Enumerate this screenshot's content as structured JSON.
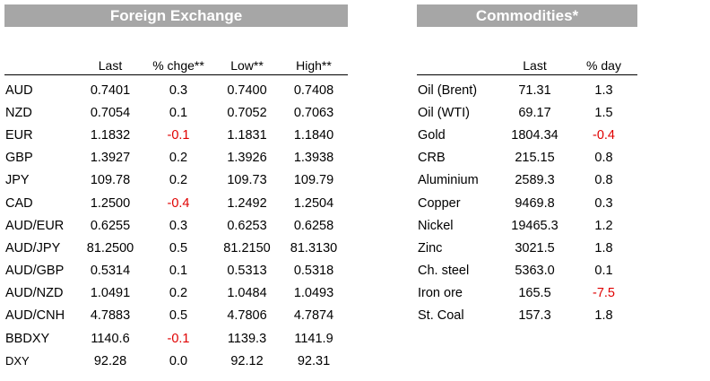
{
  "fx": {
    "title": "Foreign Exchange",
    "headers": [
      "",
      "Last",
      "% chge**",
      "Low**",
      "High**"
    ],
    "rows": [
      {
        "name": "AUD",
        "last": "0.7401",
        "chg": "0.3",
        "low": "0.7400",
        "high": "0.7408"
      },
      {
        "name": "NZD",
        "last": "0.7054",
        "chg": "0.1",
        "low": "0.7052",
        "high": "0.7063"
      },
      {
        "name": "EUR",
        "last": "1.1832",
        "chg": "-0.1",
        "low": "1.1831",
        "high": "1.1840"
      },
      {
        "name": "GBP",
        "last": "1.3927",
        "chg": "0.2",
        "low": "1.3926",
        "high": "1.3938"
      },
      {
        "name": "JPY",
        "last": "109.78",
        "chg": "0.2",
        "low": "109.73",
        "high": "109.79"
      },
      {
        "name": "CAD",
        "last": "1.2500",
        "chg": "-0.4",
        "low": "1.2492",
        "high": "1.2504"
      },
      {
        "name": "AUD/EUR",
        "last": "0.6255",
        "chg": "0.3",
        "low": "0.6253",
        "high": "0.6258"
      },
      {
        "name": "AUD/JPY",
        "last": "81.2500",
        "chg": "0.5",
        "low": "81.2150",
        "high": "81.3130"
      },
      {
        "name": "AUD/GBP",
        "last": "0.5314",
        "chg": "0.1",
        "low": "0.5313",
        "high": "0.5318"
      },
      {
        "name": "AUD/NZD",
        "last": "1.0491",
        "chg": "0.2",
        "low": "1.0484",
        "high": "1.0493"
      },
      {
        "name": "AUD/CNH",
        "last": "4.7883",
        "chg": "0.5",
        "low": "4.7806",
        "high": "4.7874"
      },
      {
        "name": "BBDXY",
        "last": "1140.6",
        "chg": "-0.1",
        "low": "1139.3",
        "high": "1141.9"
      },
      {
        "name": "DXY",
        "last": "92.28",
        "chg": "0.0",
        "low": "92.12",
        "high": "92.31"
      }
    ]
  },
  "commodities": {
    "title": "Commodities*",
    "headers": [
      "",
      "Last",
      "% day"
    ],
    "rows": [
      {
        "name": "Oil (Brent)",
        "last": "71.31",
        "day": "1.3"
      },
      {
        "name": "Oil (WTI)",
        "last": "69.17",
        "day": "1.5"
      },
      {
        "name": "Gold",
        "last": "1804.34",
        "day": "-0.4"
      },
      {
        "name": "CRB",
        "last": "215.15",
        "day": "0.8"
      },
      {
        "name": "Aluminium",
        "last": "2589.3",
        "day": "0.8"
      },
      {
        "name": "Copper",
        "last": "9469.8",
        "day": "0.3"
      },
      {
        "name": "Nickel",
        "last": "19465.3",
        "day": "1.2"
      },
      {
        "name": "Zinc",
        "last": "3021.5",
        "day": "1.8"
      },
      {
        "name": "Ch. steel",
        "last": "5363.0",
        "day": "0.1"
      },
      {
        "name": "Iron ore",
        "last": "165.5",
        "day": "-7.5"
      },
      {
        "name": "St. Coal",
        "last": "157.3",
        "day": "1.8"
      }
    ]
  },
  "colors": {
    "banner": "#a6a6a6",
    "negative": "#e00000"
  }
}
